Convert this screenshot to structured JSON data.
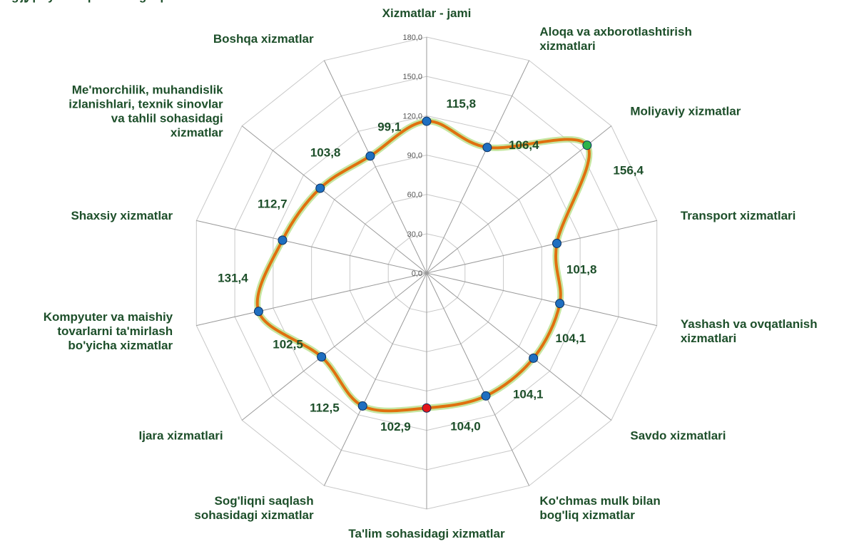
{
  "chart_data": {
    "type": "radar",
    "categories": [
      "Xizmatlar - jami",
      "Aloqa va axborotlashtirish\nxizmatlari",
      "Moliyaviy xizmatlar",
      "Transport xizmatlari",
      "Yashash va ovqatlanish\nxizmatlari",
      "Savdo xizmatlari",
      "Ko'chmas mulk bilan\nbog'liq xizmatlar",
      "Ta'lim sohasidagi xizmatlar",
      "Sog'liqni saqlash\nsohasidagi xizmatlar",
      "Ijara xizmatlari",
      "Kompyuter va maishiy\ntovarlarni ta'mirlash\nbo'yicha xizmatlar",
      "Shaxsiy xizmatlar",
      "Me'morchilik, muhandislik\nizlanishlari, texnik  sinovlar\nva tahlil sohasidagi\nxizmatlar",
      "Boshqa xizmatlar"
    ],
    "values": [
      115.8,
      106.4,
      156.4,
      101.8,
      104.1,
      104.1,
      104.0,
      102.9,
      112.5,
      102.5,
      131.4,
      112.7,
      103.8,
      99.1
    ],
    "value_labels": [
      "115,8",
      "106,4",
      "156,4",
      "101,8",
      "104,1",
      "104,1",
      "104,0",
      "102,9",
      "112,5",
      "102,5",
      "131,4",
      "112,7",
      "103,8",
      "99,1"
    ],
    "color": "#e0700f",
    "marker_colors": [
      "#1f6fc0",
      "#1f6fc0",
      "#2db34a",
      "#1f6fc0",
      "#1f6fc0",
      "#1f6fc0",
      "#1f6fc0",
      "#e3151a",
      "#1f6fc0",
      "#1f6fc0",
      "#1f6fc0",
      "#1f6fc0",
      "#1f6fc0",
      "#1f6fc0"
    ],
    "ylim": [
      0,
      180
    ],
    "yticks": [
      {
        "value": 0,
        "label": "0,0"
      },
      {
        "value": 30,
        "label": "30,0"
      },
      {
        "value": 60,
        "label": "60,0"
      },
      {
        "value": 90,
        "label": "90,0"
      },
      {
        "value": 120,
        "label": "120,0"
      },
      {
        "value": 150,
        "label": "150,0"
      },
      {
        "value": 180,
        "label": "180,0"
      }
    ],
    "grid": true
  }
}
